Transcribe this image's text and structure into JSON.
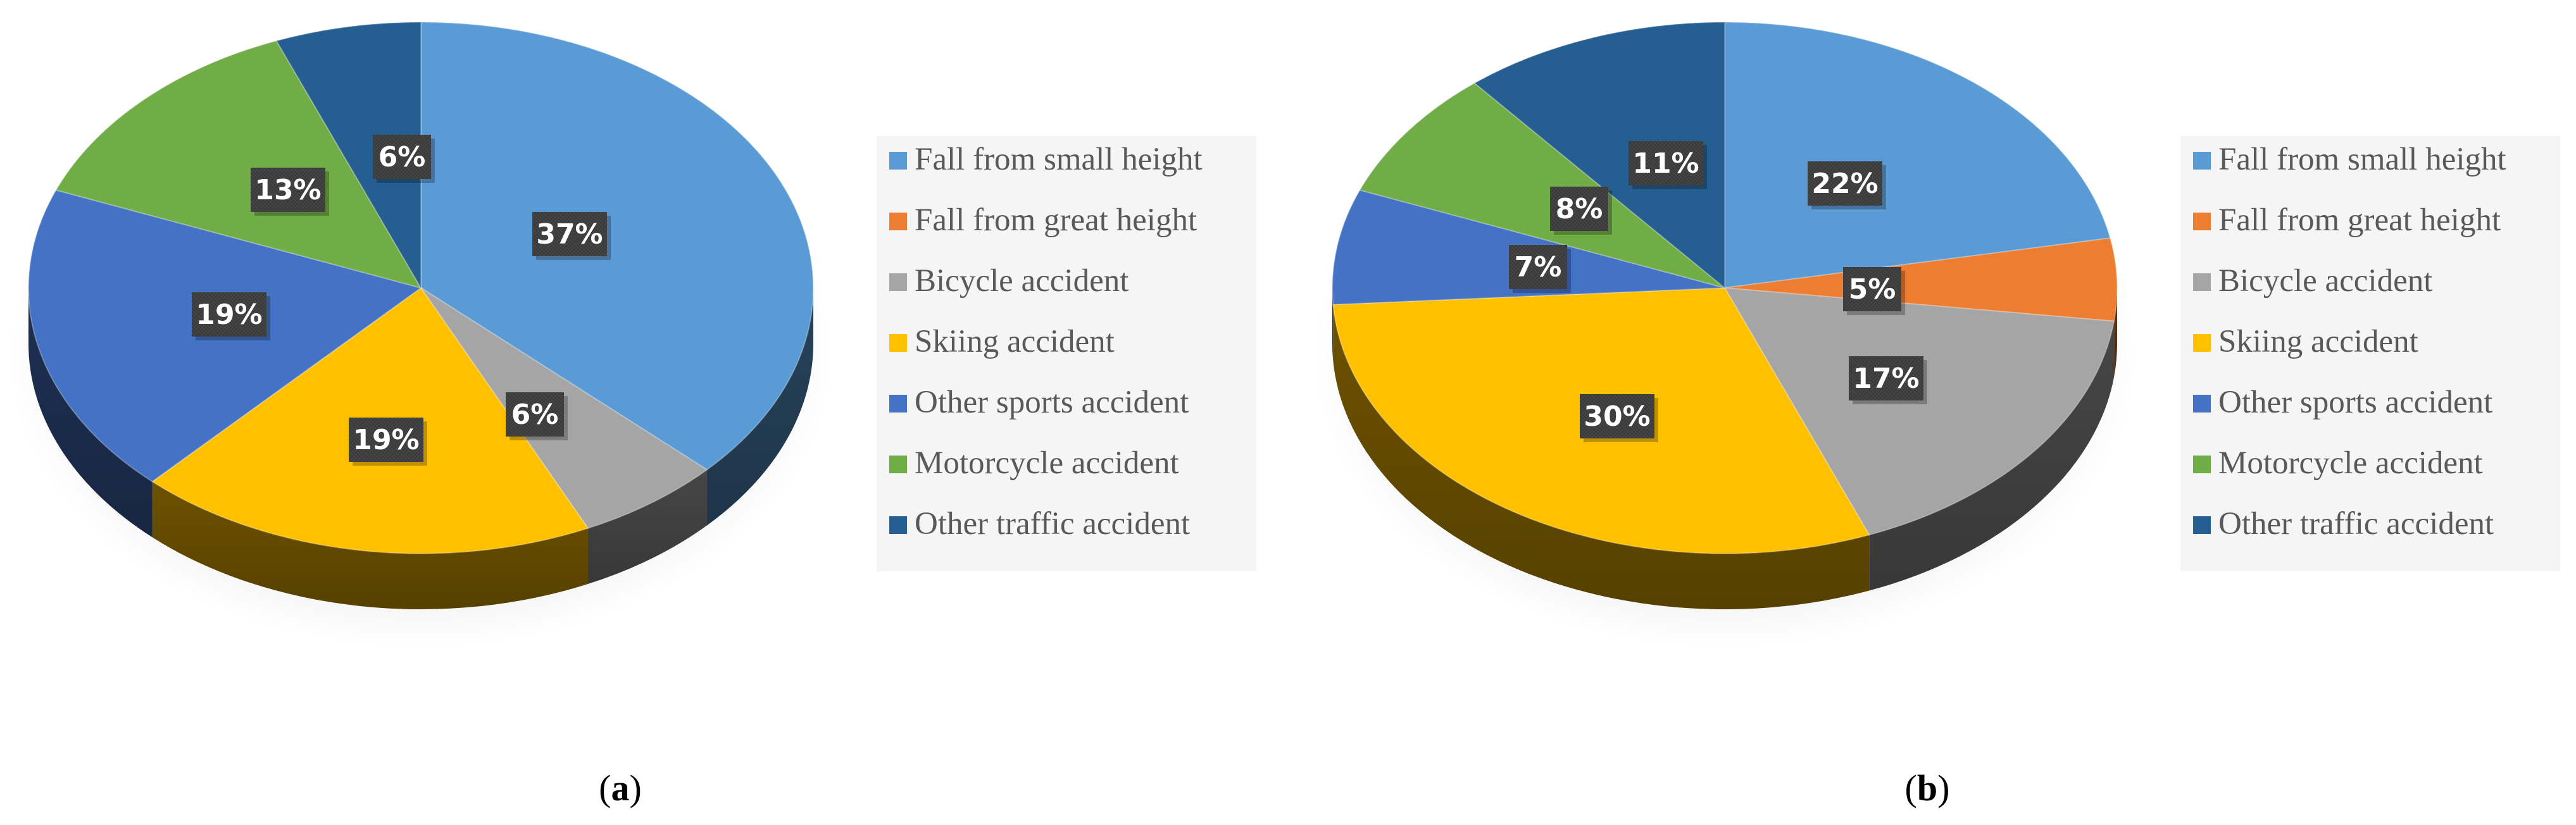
{
  "chart_data": [
    {
      "type": "pie",
      "caption": "(a)",
      "caption_letter": "a",
      "categories": [
        "Fall from small height",
        "Fall from great height",
        "Bicycle accident",
        "Skiing accident",
        "Other sports accident",
        "Motorcycle accident",
        "Other traffic accident"
      ],
      "values": [
        37,
        0,
        6,
        19,
        19,
        13,
        6
      ],
      "value_unit": "%",
      "legend_position": "right",
      "style": "3d"
    },
    {
      "type": "pie",
      "caption": "(b)",
      "caption_letter": "b",
      "categories": [
        "Fall from small height",
        "Fall from great height",
        "Bicycle accident",
        "Skiing accident",
        "Other sports accident",
        "Motorcycle accident",
        "Other traffic accident"
      ],
      "values": [
        22,
        5,
        17,
        30,
        7,
        8,
        11
      ],
      "value_unit": "%",
      "legend_position": "right",
      "style": "3d"
    }
  ],
  "colors": {
    "Fall from small height": "#5b9bd5",
    "Fall from great height": "#ed7d31",
    "Bicycle accident": "#a5a5a5",
    "Skiing accident": "#ffc000",
    "Other sports accident": "#4472c4",
    "Motorcycle accident": "#70ad47",
    "Other traffic accident": "#255e91"
  },
  "label_box_color": "#3a3a3a",
  "legend_box_color": "#f5f5f5"
}
